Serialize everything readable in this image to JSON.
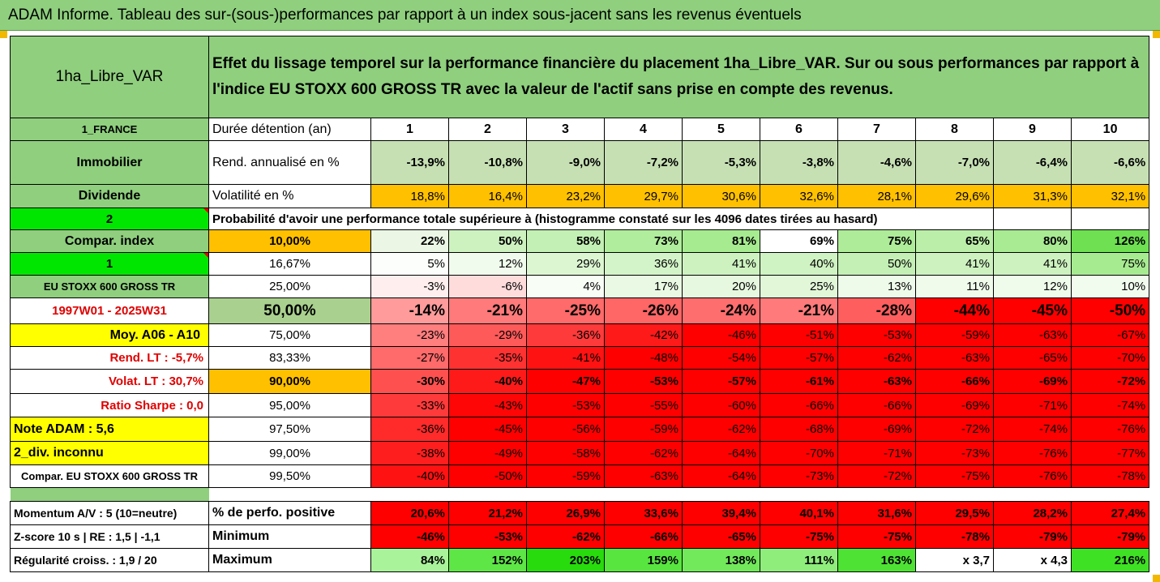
{
  "title": "ADAM Informe. Tableau des sur-(sous-)performances par rapport à un index sous-jacent sans les revenus éventuels",
  "fund_name": "1ha_Libre_VAR",
  "description": "Effet du lissage temporel sur la performance financière du placement 1ha_Libre_VAR. Sur ou sous performances par rapport à l'indice EU STOXX 600 GROSS TR avec la valeur de l'actif sans prise en compte des revenus.",
  "left": {
    "country": "1_FRANCE",
    "category": "Immobilier",
    "dividend": "Dividende",
    "two": "2",
    "compar_index": "Compar. index",
    "one": "1",
    "index_name": "EU STOXX 600 GROSS TR",
    "period": "1997W01 - 2025W31",
    "moy": "Moy. A06 - A10",
    "rend_lt": "Rend. LT :   -5,7%",
    "volat_lt": "Volat. LT :   30,7%",
    "sharpe": "Ratio Sharpe :   0,0",
    "note_adam": "Note ADAM : 5,6",
    "div": "2_div. inconnu",
    "compar_full": "Compar. EU STOXX 600 GROSS TR",
    "momentum": "Momentum A/V : 5 (10=neutre)",
    "zscore": "Z-score 10 s  |  RE : 1,5  |  -1,1",
    "regularite": "Régularité croiss. : 1,9 / 20"
  },
  "labels": {
    "duree": "Durée détention (an)",
    "rend": "Rend. annualisé en %",
    "volat": "Volatilité en %",
    "proba": "Probabilité d'avoir une performance totale supérieure à (histogramme constaté sur les 4096 dates tirées au hasard)",
    "perf_pos": "% de perfo. positive",
    "minimum": "Minimum",
    "maximum": "Maximum"
  },
  "years": [
    "1",
    "2",
    "3",
    "4",
    "5",
    "6",
    "7",
    "8",
    "9",
    "10"
  ],
  "rend": [
    "-13,9%",
    "-10,8%",
    "-9,0%",
    "-7,2%",
    "-5,3%",
    "-3,8%",
    "-4,6%",
    "-7,0%",
    "-6,4%",
    "-6,6%"
  ],
  "volat": [
    "18,8%",
    "16,4%",
    "23,2%",
    "29,7%",
    "30,6%",
    "32,6%",
    "28,1%",
    "29,6%",
    "31,3%",
    "32,1%"
  ],
  "percentiles": [
    {
      "p": "10,00%",
      "v": [
        "22%",
        "50%",
        "58%",
        "73%",
        "81%",
        "69%",
        "75%",
        "65%",
        "80%",
        "126%"
      ]
    },
    {
      "p": "16,67%",
      "v": [
        "5%",
        "12%",
        "29%",
        "36%",
        "41%",
        "40%",
        "50%",
        "41%",
        "41%",
        "75%"
      ]
    },
    {
      "p": "25,00%",
      "v": [
        "-3%",
        "-6%",
        "4%",
        "17%",
        "20%",
        "25%",
        "13%",
        "11%",
        "12%",
        "10%"
      ]
    },
    {
      "p": "50,00%",
      "v": [
        "-14%",
        "-21%",
        "-25%",
        "-26%",
        "-24%",
        "-21%",
        "-28%",
        "-44%",
        "-45%",
        "-50%"
      ]
    },
    {
      "p": "75,00%",
      "v": [
        "-23%",
        "-29%",
        "-36%",
        "-42%",
        "-46%",
        "-51%",
        "-53%",
        "-59%",
        "-63%",
        "-67%"
      ]
    },
    {
      "p": "83,33%",
      "v": [
        "-27%",
        "-35%",
        "-41%",
        "-48%",
        "-54%",
        "-57%",
        "-62%",
        "-63%",
        "-65%",
        "-70%"
      ]
    },
    {
      "p": "90,00%",
      "v": [
        "-30%",
        "-40%",
        "-47%",
        "-53%",
        "-57%",
        "-61%",
        "-63%",
        "-66%",
        "-69%",
        "-72%"
      ]
    },
    {
      "p": "95,00%",
      "v": [
        "-33%",
        "-43%",
        "-53%",
        "-55%",
        "-60%",
        "-66%",
        "-66%",
        "-69%",
        "-71%",
        "-74%"
      ]
    },
    {
      "p": "97,50%",
      "v": [
        "-36%",
        "-45%",
        "-56%",
        "-59%",
        "-62%",
        "-68%",
        "-69%",
        "-72%",
        "-74%",
        "-76%"
      ]
    },
    {
      "p": "99,00%",
      "v": [
        "-38%",
        "-49%",
        "-58%",
        "-62%",
        "-64%",
        "-70%",
        "-71%",
        "-73%",
        "-76%",
        "-77%"
      ]
    },
    {
      "p": "99,50%",
      "v": [
        "-40%",
        "-50%",
        "-59%",
        "-63%",
        "-64%",
        "-73%",
        "-72%",
        "-75%",
        "-76%",
        "-78%"
      ]
    }
  ],
  "perf_pos": [
    "20,6%",
    "21,2%",
    "26,9%",
    "33,6%",
    "39,4%",
    "40,1%",
    "31,6%",
    "29,5%",
    "28,2%",
    "27,4%"
  ],
  "minimum": [
    "-46%",
    "-53%",
    "-62%",
    "-66%",
    "-65%",
    "-75%",
    "-75%",
    "-78%",
    "-79%",
    "-79%"
  ],
  "maximum": [
    "84%",
    "152%",
    "203%",
    "159%",
    "138%",
    "111%",
    "163%",
    "x 3,7",
    "x 4,3",
    "216%"
  ],
  "colors": {
    "header_green": "#8fcf7e",
    "bright_green": "#00e600",
    "yellow": "#ffff00",
    "orange": "#ffc000",
    "red": "#ff0000",
    "pale_green": "#c6e0b4"
  }
}
